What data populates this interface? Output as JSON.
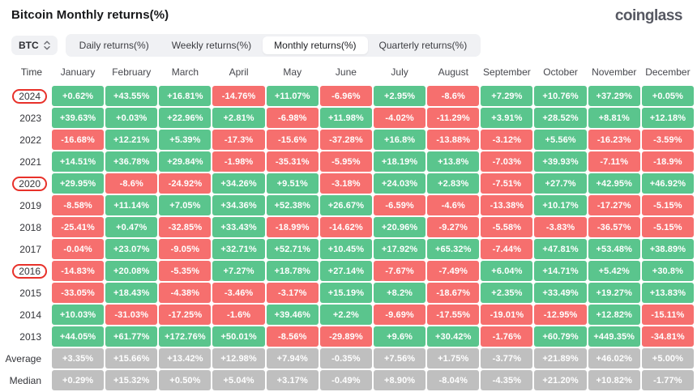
{
  "header": {
    "title": "Bitcoin Monthly returns(%)",
    "logo": "coinglass"
  },
  "controls": {
    "coin": "BTC",
    "coin_chevrons_icon": "select-up-down-chevrons",
    "tabs": [
      {
        "label": "Daily returns(%)",
        "active": false
      },
      {
        "label": "Weekly returns(%)",
        "active": false
      },
      {
        "label": "Monthly returns(%)",
        "active": true
      },
      {
        "label": "Quarterly returns(%)",
        "active": false
      }
    ]
  },
  "colors": {
    "positive": "#5ac58d",
    "negative": "#f66f6e",
    "neutral": "#bfbfbf",
    "annotation": "#e8312a"
  },
  "annotations": {
    "circled_years": [
      "2024",
      "2020",
      "2016"
    ]
  },
  "chart_data": {
    "type": "heatmap",
    "title": "Bitcoin Monthly returns(%)",
    "columns": [
      "Time",
      "January",
      "February",
      "March",
      "April",
      "May",
      "June",
      "July",
      "August",
      "September",
      "October",
      "November",
      "December"
    ],
    "rows": [
      {
        "label": "2024",
        "kind": "year",
        "values": [
          "+0.62%",
          "+43.55%",
          "+16.81%",
          "-14.76%",
          "+11.07%",
          "-6.96%",
          "+2.95%",
          "-8.6%",
          "+7.29%",
          "+10.76%",
          "+37.29%",
          "+0.05%"
        ]
      },
      {
        "label": "2023",
        "kind": "year",
        "values": [
          "+39.63%",
          "+0.03%",
          "+22.96%",
          "+2.81%",
          "-6.98%",
          "+11.98%",
          "-4.02%",
          "-11.29%",
          "+3.91%",
          "+28.52%",
          "+8.81%",
          "+12.18%"
        ]
      },
      {
        "label": "2022",
        "kind": "year",
        "values": [
          "-16.68%",
          "+12.21%",
          "+5.39%",
          "-17.3%",
          "-15.6%",
          "-37.28%",
          "+16.8%",
          "-13.88%",
          "-3.12%",
          "+5.56%",
          "-16.23%",
          "-3.59%"
        ]
      },
      {
        "label": "2021",
        "kind": "year",
        "values": [
          "+14.51%",
          "+36.78%",
          "+29.84%",
          "-1.98%",
          "-35.31%",
          "-5.95%",
          "+18.19%",
          "+13.8%",
          "-7.03%",
          "+39.93%",
          "-7.11%",
          "-18.9%"
        ]
      },
      {
        "label": "2020",
        "kind": "year",
        "values": [
          "+29.95%",
          "-8.6%",
          "-24.92%",
          "+34.26%",
          "+9.51%",
          "-3.18%",
          "+24.03%",
          "+2.83%",
          "-7.51%",
          "+27.7%",
          "+42.95%",
          "+46.92%"
        ]
      },
      {
        "label": "2019",
        "kind": "year",
        "values": [
          "-8.58%",
          "+11.14%",
          "+7.05%",
          "+34.36%",
          "+52.38%",
          "+26.67%",
          "-6.59%",
          "-4.6%",
          "-13.38%",
          "+10.17%",
          "-17.27%",
          "-5.15%"
        ]
      },
      {
        "label": "2018",
        "kind": "year",
        "values": [
          "-25.41%",
          "+0.47%",
          "-32.85%",
          "+33.43%",
          "-18.99%",
          "-14.62%",
          "+20.96%",
          "-9.27%",
          "-5.58%",
          "-3.83%",
          "-36.57%",
          "-5.15%"
        ]
      },
      {
        "label": "2017",
        "kind": "year",
        "values": [
          "-0.04%",
          "+23.07%",
          "-9.05%",
          "+32.71%",
          "+52.71%",
          "+10.45%",
          "+17.92%",
          "+65.32%",
          "-7.44%",
          "+47.81%",
          "+53.48%",
          "+38.89%"
        ]
      },
      {
        "label": "2016",
        "kind": "year",
        "values": [
          "-14.83%",
          "+20.08%",
          "-5.35%",
          "+7.27%",
          "+18.78%",
          "+27.14%",
          "-7.67%",
          "-7.49%",
          "+6.04%",
          "+14.71%",
          "+5.42%",
          "+30.8%"
        ]
      },
      {
        "label": "2015",
        "kind": "year",
        "values": [
          "-33.05%",
          "+18.43%",
          "-4.38%",
          "-3.46%",
          "-3.17%",
          "+15.19%",
          "+8.2%",
          "-18.67%",
          "+2.35%",
          "+33.49%",
          "+19.27%",
          "+13.83%"
        ]
      },
      {
        "label": "2014",
        "kind": "year",
        "values": [
          "+10.03%",
          "-31.03%",
          "-17.25%",
          "-1.6%",
          "+39.46%",
          "+2.2%",
          "-9.69%",
          "-17.55%",
          "-19.01%",
          "-12.95%",
          "+12.82%",
          "-15.11%"
        ]
      },
      {
        "label": "2013",
        "kind": "year",
        "values": [
          "+44.05%",
          "+61.77%",
          "+172.76%",
          "+50.01%",
          "-8.56%",
          "-29.89%",
          "+9.6%",
          "+30.42%",
          "-1.76%",
          "+60.79%",
          "+449.35%",
          "-34.81%"
        ]
      },
      {
        "label": "Average",
        "kind": "summary",
        "values": [
          "+3.35%",
          "+15.66%",
          "+13.42%",
          "+12.98%",
          "+7.94%",
          "-0.35%",
          "+7.56%",
          "+1.75%",
          "-3.77%",
          "+21.89%",
          "+46.02%",
          "+5.00%"
        ]
      },
      {
        "label": "Median",
        "kind": "summary",
        "values": [
          "+0.29%",
          "+15.32%",
          "+0.50%",
          "+5.04%",
          "+3.17%",
          "-0.49%",
          "+8.90%",
          "-8.04%",
          "-4.35%",
          "+21.20%",
          "+10.82%",
          "-1.77%"
        ]
      }
    ]
  }
}
